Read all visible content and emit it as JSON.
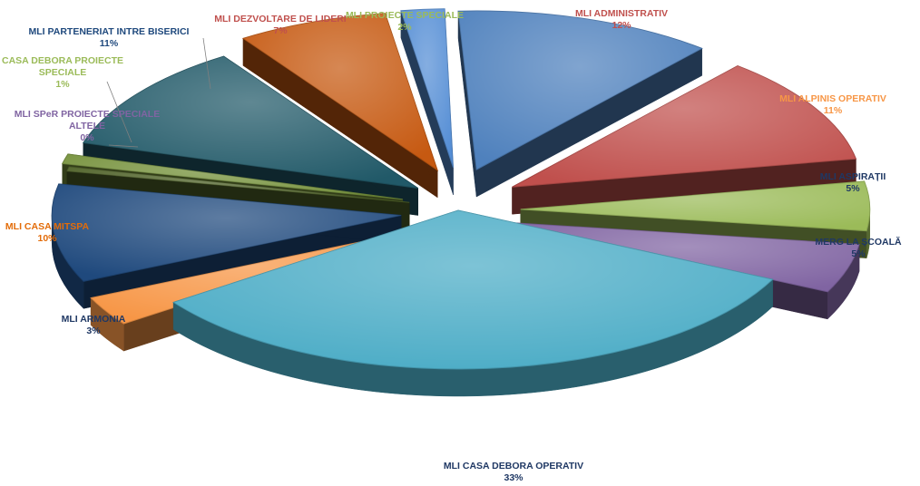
{
  "chart_data": {
    "type": "pie",
    "title": "",
    "slices": [
      {
        "name": "MLI ADMINISTRATIV",
        "name_lines": [
          "MLI ADMINISTRATIV"
        ],
        "value": 12,
        "label": "12%",
        "color": "#4f81bd",
        "label_color": "#c0504d"
      },
      {
        "name": "MLI ALPINIS OPERATIV",
        "name_lines": [
          "MLI ALPINIS OPERATIV"
        ],
        "value": 11,
        "label": "11%",
        "color": "#c0504d",
        "label_color": "#f79646"
      },
      {
        "name": "MLI ASPIRAȚII",
        "name_lines": [
          "MLI ASPIRAȚII"
        ],
        "value": 5,
        "label": "5%",
        "color": "#9bbb59",
        "label_color": "#1f3864"
      },
      {
        "name": "MERG LA ȘCOALĂ",
        "name_lines": [
          "MERG LA ȘCOALĂ"
        ],
        "value": 5,
        "label": "5%",
        "color": "#8064a2",
        "label_color": "#1f3864"
      },
      {
        "name": "MLI CASA DEBORA OPERATIV",
        "name_lines": [
          "MLI CASA DEBORA OPERATIV"
        ],
        "value": 33,
        "label": "33%",
        "color": "#4bacc6",
        "label_color": "#1f3864"
      },
      {
        "name": "MLI ARMONIA",
        "name_lines": [
          "MLI ARMONIA"
        ],
        "value": 3,
        "label": "3%",
        "color": "#f79646",
        "label_color": "#1f3864"
      },
      {
        "name": "MLI CASA MITSPA",
        "name_lines": [
          "MLI CASA MITSPA"
        ],
        "value": 10,
        "label": "10%",
        "color": "#1f497d",
        "label_color": "#e36c09"
      },
      {
        "name": "MLI SPeR PROIECTE SPECIALE ALTELE",
        "name_lines": [
          "MLI SPeR  PROIECTE SPECIALE",
          "ALTELE"
        ],
        "value": 0,
        "label": "0%",
        "color": "#4f6228",
        "label_color": "#8064a2"
      },
      {
        "name": "CASA DEBORA PROIECTE SPECIALE",
        "name_lines": [
          "CASA DEBORA PROIECTE",
          "SPECIALE"
        ],
        "value": 1,
        "label": "1%",
        "color": "#76923c",
        "label_color": "#9bbb59"
      },
      {
        "name": "MLI PARTENERIAT INTRE BISERICI",
        "name_lines": [
          "MLI PARTENERIAT INTRE BISERICI"
        ],
        "value": 11,
        "label": "11%",
        "color": "#215968",
        "label_color": "#1f497d"
      },
      {
        "name": "MLI DEZVOLTARE DE LIDERI",
        "name_lines": [
          "MLI DEZVOLTARE DE LIDERI"
        ],
        "value": 7,
        "label": "7%",
        "color": "#c65911",
        "label_color": "#c0504d"
      },
      {
        "name": "MLI PROIECTE SPECIALE",
        "name_lines": [
          "MLI PROIECTE SPECIALE"
        ],
        "value": 2,
        "label": "2%",
        "color": "#558ed5",
        "label_color": "#9bbb59"
      }
    ]
  }
}
